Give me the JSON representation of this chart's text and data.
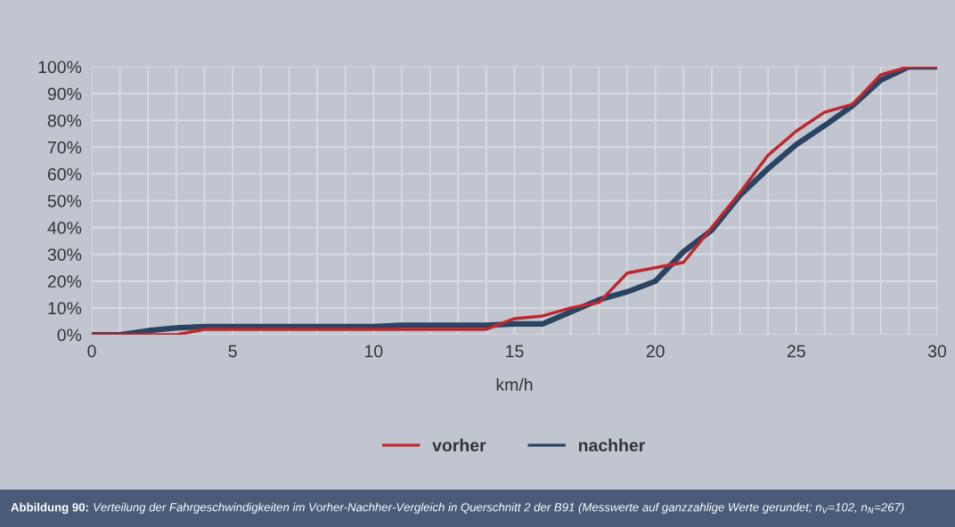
{
  "chart_data": {
    "type": "line",
    "xlabel": "km/h",
    "x": [
      0,
      1,
      2,
      3,
      4,
      5,
      6,
      7,
      8,
      9,
      10,
      11,
      12,
      13,
      14,
      15,
      16,
      17,
      18,
      19,
      20,
      21,
      22,
      23,
      24,
      25,
      26,
      27,
      28,
      29,
      30
    ],
    "series": [
      {
        "name": "vorher",
        "color": "#c0272d",
        "values": [
          0,
          0,
          0,
          0,
          2,
          2,
          2,
          2,
          2,
          2,
          2,
          2,
          2,
          2,
          2,
          6,
          7,
          10,
          12,
          23,
          25,
          27,
          40,
          53,
          67,
          76,
          83,
          86,
          97,
          100,
          100
        ]
      },
      {
        "name": "nachher",
        "color": "#2b4463",
        "values": [
          0,
          0,
          1.5,
          2.5,
          3,
          3,
          3,
          3,
          3,
          3,
          3,
          3.5,
          3.5,
          3.5,
          3.5,
          4,
          4,
          8.5,
          13,
          16,
          20,
          31,
          39,
          52,
          62,
          71,
          78,
          85.5,
          95,
          100,
          100
        ]
      }
    ],
    "xlim": [
      0,
      30
    ],
    "xticks": [
      0,
      5,
      10,
      15,
      20,
      25,
      30
    ],
    "ylim": [
      0,
      100
    ],
    "yticks": [
      {
        "value": 0,
        "label": "0%"
      },
      {
        "value": 10,
        "label": "10%"
      },
      {
        "value": 20,
        "label": "20%"
      },
      {
        "value": 30,
        "label": "30%"
      },
      {
        "value": 40,
        "label": "40%"
      },
      {
        "value": 50,
        "label": "50%"
      },
      {
        "value": 60,
        "label": "60%"
      },
      {
        "value": 70,
        "label": "70%"
      },
      {
        "value": 80,
        "label": "80%"
      },
      {
        "value": 90,
        "label": "90%"
      },
      {
        "value": 100,
        "label": "100%"
      }
    ],
    "grid": true,
    "legend": "bottom",
    "marker": "none",
    "line_style": "solid",
    "annotations": [
      "Abbildung 90:",
      "Verteilung der Fahrgeschwindigkeiten im Vorher-Nachher-Vergleich in Querschnitt 2 der B91 (Messwerte auf ganzzahlige Werte gerundet; n$_{V}$=102, n$_{N}$=267)"
    ]
  }
}
